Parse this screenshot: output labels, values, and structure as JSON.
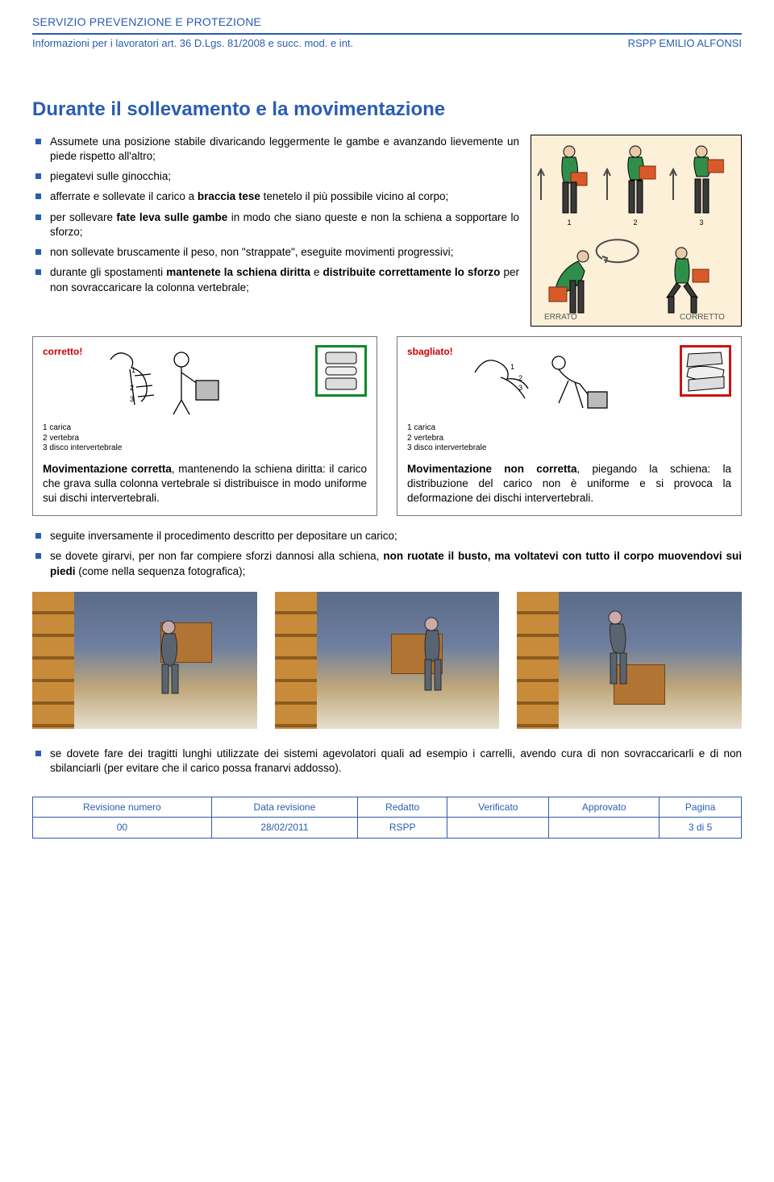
{
  "header": {
    "service_line": "SERVIZIO PREVENZIONE E PROTEZIONE",
    "info_line_left": "Informazioni per i lavoratori art. 36 D.Lgs. 81/2008 e succ. mod. e int.",
    "info_line_right": "RSPP EMILIO ALFONSI",
    "rule_color": "#2a5db0"
  },
  "title": "Durante il sollevamento e la movimentazione",
  "bullets_top": [
    "Assumete una posizione stabile divaricando leggermente le gambe e avanzando lievemente un piede rispetto all'altro;",
    "piegatevi sulle ginocchia;",
    "afferrate e sollevate il carico a braccia tese tenetelo il più possibile vicino al corpo;",
    "per sollevare fate leva sulle gambe in modo che siano queste e non la schiena a sopportare lo sforzo;",
    "non sollevate bruscamente il peso, non \"strappate\", eseguite movimenti progressivi;",
    "durante gli spostamenti mantenete la schiena diritta e distribuite correttamente lo sforzo per non sovraccaricare la colonna vertebrale;"
  ],
  "bullets_top_bold": {
    "2": [
      "braccia tese"
    ],
    "3": [
      "fate leva sulle gambe"
    ],
    "5": [
      "mantenete la schiena diritta",
      "distribuite correttamente lo sforzo"
    ]
  },
  "lift_diagram": {
    "bg": "#fdf0d8",
    "figures_top": [
      "1",
      "2",
      "3"
    ],
    "labels_bottom": {
      "left": "ERRATO",
      "right": "CORRETTO"
    },
    "shirt_color": "#2f8f4a",
    "pants_color": "#3a3a3a",
    "box_color": "#d85a2a",
    "arrow_color": "#4a4a4a"
  },
  "posture": {
    "left": {
      "tag": "corretto!",
      "caption": [
        "1 carica",
        "2 vertebra",
        "3 disco intervertebrale"
      ],
      "thumb_border": "#0b8a2a",
      "desc_pre": "Movimentazione corretta",
      "desc": ", mantenendo la schiena diritta: il carico che grava sulla colonna vertebrale si distribuisce in modo uniforme sui dischi intervertebrali."
    },
    "right": {
      "tag": "sbagliato!",
      "caption": [
        "1 carica",
        "2 vertebra",
        "3 disco intervertebrale"
      ],
      "thumb_border": "#cc1212",
      "desc_pre": "Movimentazione non corretta",
      "desc": ", piegando la schiena: la distribuzione del carico non è uniforme e si provoca la deformazione dei dischi intervertebrali."
    }
  },
  "bullets_mid": [
    "seguite inversamente il procedimento descritto per depositare un carico;",
    "se dovete girarvi, per non far compiere sforzi dannosi alla schiena, non ruotate il busto, ma voltatevi con tutto il corpo muovendovi sui piedi (come nella sequenza fotografica);"
  ],
  "bullets_mid_bold": {
    "1": [
      "non ruotate il busto, ma voltatevi con tutto il corpo muovendovi sui piedi"
    ]
  },
  "bullets_bottom": [
    "se dovete fare dei tragitti lunghi utilizzate dei sistemi agevolatori quali ad esempio i carrelli, avendo cura di non sovraccaricarli e di non sbilanciarli (per evitare che il carico possa franarvi addosso)."
  ],
  "footer": {
    "headers": [
      "Revisione numero",
      "Data revisione",
      "Redatto",
      "Verificato",
      "Approvato",
      "Pagina"
    ],
    "row": [
      "00",
      "28/02/2011",
      "RSPP",
      "",
      "",
      "3 di 5"
    ]
  },
  "colors": {
    "brand": "#2a5db0",
    "text": "#000000",
    "red": "#cc0000"
  }
}
